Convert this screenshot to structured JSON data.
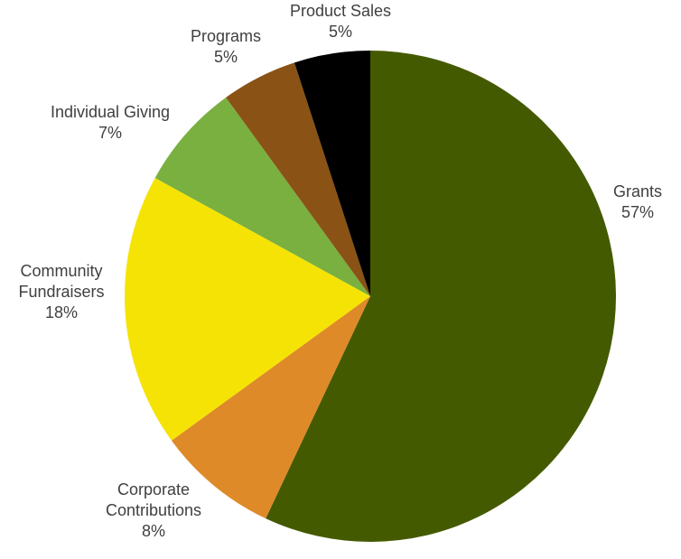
{
  "chart_data": {
    "type": "pie",
    "title": "",
    "start_angle_deg": 0,
    "direction": "clockwise",
    "slices": [
      {
        "label": "Grants",
        "value": 57,
        "percent_label": "57%",
        "color": "#445A00"
      },
      {
        "label": "Corporate Contributions",
        "value": 8,
        "percent_label": "8%",
        "color": "#DE8A28"
      },
      {
        "label": "Community Fundraisers",
        "value": 18,
        "percent_label": "18%",
        "color": "#F5E305"
      },
      {
        "label": "Individual Giving",
        "value": 7,
        "percent_label": "7%",
        "color": "#79B040"
      },
      {
        "label": "Programs",
        "value": 5,
        "percent_label": "5%",
        "color": "#8A5215"
      },
      {
        "label": "Product Sales",
        "value": 5,
        "percent_label": "5%",
        "color": "#000000"
      }
    ],
    "legend": "none",
    "data_labels": "outside"
  }
}
